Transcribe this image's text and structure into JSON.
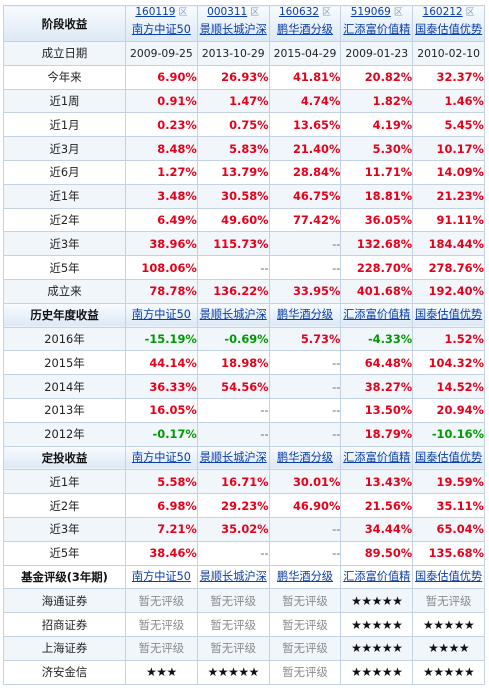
{
  "funds": [
    {
      "code": "160119",
      "name": "南方中证50",
      "icon": "chart-icon",
      "icon_glyph": "区"
    },
    {
      "code": "000311",
      "name": "景顺长城沪深",
      "icon": "chart-icon",
      "icon_glyph": "区"
    },
    {
      "code": "160632",
      "name": "鹏华酒分级",
      "icon": "chart-icon",
      "icon_glyph": "区"
    },
    {
      "code": "519069",
      "name": "汇添富价值精",
      "icon": "chart-icon",
      "icon_glyph": "区"
    },
    {
      "code": "160212",
      "name": "国泰估值优势",
      "icon": "chart-icon",
      "icon_glyph": "区"
    }
  ],
  "colors": {
    "up": "#e8001a",
    "down": "#009a00",
    "link": "#0b3ea8",
    "border": "#c4d3e3",
    "header_bg": "#dce8f4"
  },
  "sections": [
    {
      "key": "stage",
      "title": "阶段收益",
      "rows": [
        {
          "label": "成立日期",
          "kind": "date",
          "values": [
            "2009-09-25",
            "2013-10-29",
            "2015-04-29",
            "2009-01-23",
            "2010-02-10"
          ]
        },
        {
          "label": "今年来",
          "values": [
            "6.90%",
            "26.93%",
            "41.81%",
            "20.82%",
            "32.37%"
          ]
        },
        {
          "label": "近1周",
          "values": [
            "0.91%",
            "1.47%",
            "4.74%",
            "1.82%",
            "1.46%"
          ]
        },
        {
          "label": "近1月",
          "values": [
            "0.23%",
            "0.75%",
            "13.65%",
            "4.19%",
            "5.45%"
          ]
        },
        {
          "label": "近3月",
          "values": [
            "8.48%",
            "5.83%",
            "21.40%",
            "5.30%",
            "10.17%"
          ]
        },
        {
          "label": "近6月",
          "values": [
            "1.27%",
            "13.79%",
            "28.84%",
            "11.71%",
            "14.09%"
          ]
        },
        {
          "label": "近1年",
          "values": [
            "3.48%",
            "30.58%",
            "46.75%",
            "18.81%",
            "21.23%"
          ]
        },
        {
          "label": "近2年",
          "values": [
            "6.49%",
            "49.60%",
            "77.42%",
            "36.05%",
            "91.11%"
          ]
        },
        {
          "label": "近3年",
          "values": [
            "38.96%",
            "115.73%",
            "--",
            "132.68%",
            "184.44%"
          ]
        },
        {
          "label": "近5年",
          "values": [
            "108.06%",
            "--",
            "--",
            "228.70%",
            "278.76%"
          ]
        },
        {
          "label": "成立来",
          "values": [
            "78.78%",
            "136.22%",
            "33.95%",
            "401.68%",
            "192.40%"
          ]
        }
      ]
    },
    {
      "key": "annual",
      "title": "历史年度收益",
      "rows": [
        {
          "label": "2016年",
          "values": [
            "-15.19%",
            "-0.69%",
            "5.73%",
            "-4.33%",
            "1.52%"
          ]
        },
        {
          "label": "2015年",
          "values": [
            "44.14%",
            "18.98%",
            "--",
            "64.48%",
            "104.32%"
          ]
        },
        {
          "label": "2014年",
          "values": [
            "36.33%",
            "54.56%",
            "--",
            "38.27%",
            "14.52%"
          ]
        },
        {
          "label": "2013年",
          "values": [
            "16.05%",
            "--",
            "--",
            "13.50%",
            "20.94%"
          ]
        },
        {
          "label": "2012年",
          "values": [
            "-0.17%",
            "--",
            "--",
            "18.79%",
            "-10.16%"
          ]
        }
      ]
    },
    {
      "key": "sip",
      "title": "定投收益",
      "rows": [
        {
          "label": "近1年",
          "values": [
            "5.58%",
            "16.71%",
            "30.01%",
            "13.43%",
            "19.59%"
          ]
        },
        {
          "label": "近2年",
          "values": [
            "6.98%",
            "29.23%",
            "46.90%",
            "21.56%",
            "35.11%"
          ]
        },
        {
          "label": "近3年",
          "values": [
            "7.21%",
            "35.02%",
            "--",
            "34.44%",
            "65.04%"
          ]
        },
        {
          "label": "近5年",
          "values": [
            "38.46%",
            "--",
            "--",
            "89.50%",
            "135.68%"
          ]
        }
      ]
    },
    {
      "key": "rating",
      "title": "基金评级(3年期)",
      "rows": [
        {
          "label": "海通证券",
          "kind": "rating",
          "values": [
            "暂无评级",
            "暂无评级",
            "暂无评级",
            "★★★★★",
            "暂无评级"
          ]
        },
        {
          "label": "招商证券",
          "kind": "rating",
          "values": [
            "暂无评级",
            "暂无评级",
            "暂无评级",
            "★★★★★",
            "★★★★★"
          ]
        },
        {
          "label": "上海证券",
          "kind": "rating",
          "values": [
            "暂无评级",
            "暂无评级",
            "暂无评级",
            "★★★★★",
            "★★★★"
          ]
        },
        {
          "label": "济安金信",
          "kind": "rating",
          "values": [
            "★★★",
            "★★★★★",
            "暂无评级",
            "★★★★★",
            "★★★★★"
          ]
        }
      ]
    }
  ]
}
